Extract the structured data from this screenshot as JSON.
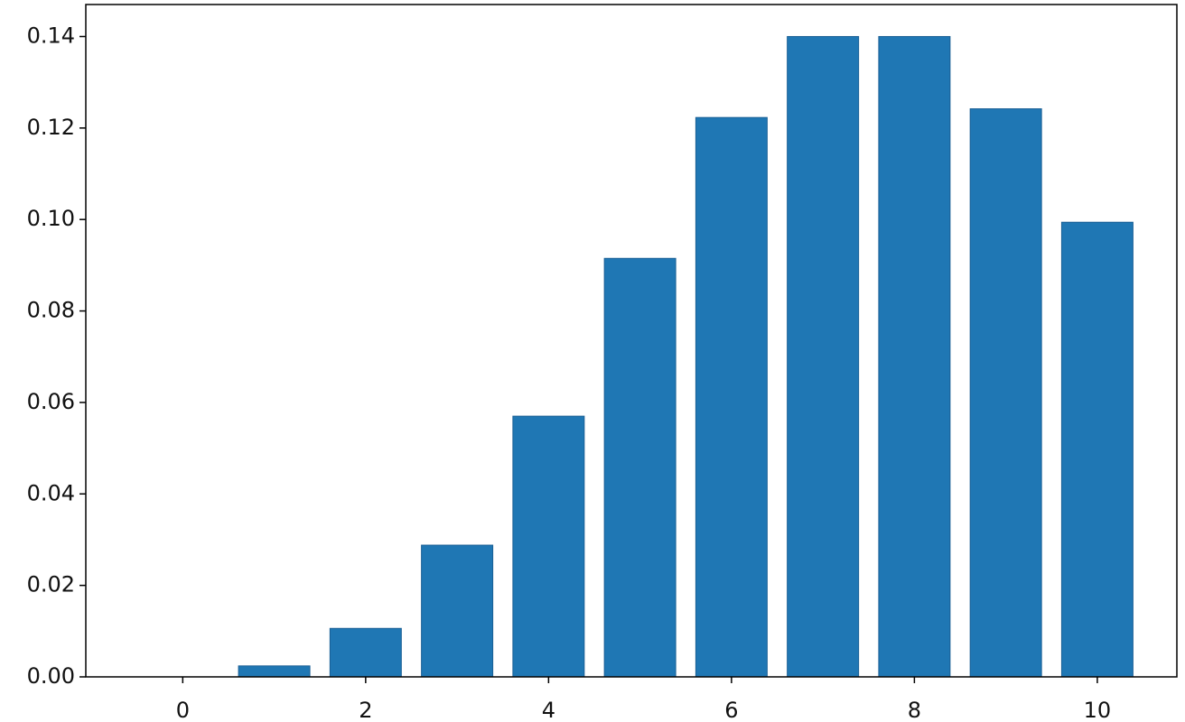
{
  "chart_data": {
    "type": "bar",
    "x": [
      1,
      2,
      3,
      4,
      5,
      6,
      7,
      8,
      9,
      10
    ],
    "values": [
      0.0024,
      0.0106,
      0.0288,
      0.057,
      0.0915,
      0.1223,
      0.14,
      0.14,
      0.1242,
      0.0994
    ],
    "color": "#1f77b4",
    "xlim": [
      -1.06,
      10.87
    ],
    "xticks": [
      0,
      2,
      4,
      6,
      8,
      10
    ],
    "ylim": [
      0,
      0.147
    ],
    "yticks": [
      {
        "value": 0,
        "label": "0.00"
      },
      {
        "value": 0.02,
        "label": "0.02"
      },
      {
        "value": 0.04,
        "label": "0.04"
      },
      {
        "value": 0.06,
        "label": "0.06"
      },
      {
        "value": 0.08,
        "label": "0.08"
      },
      {
        "value": 0.1,
        "label": "0.10"
      },
      {
        "value": 0.12,
        "label": "0.12"
      },
      {
        "value": 0.14,
        "label": "0.14"
      }
    ]
  }
}
